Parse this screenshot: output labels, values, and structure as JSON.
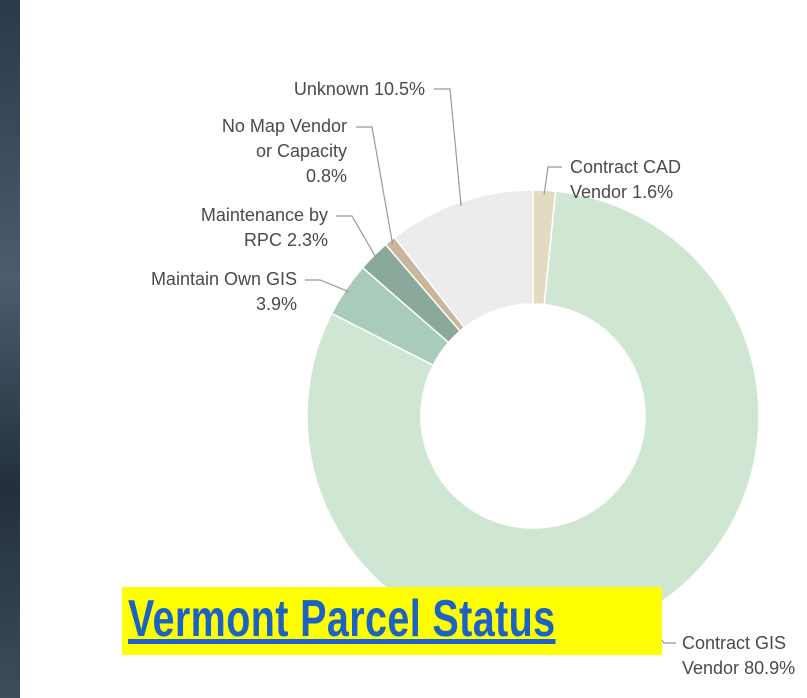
{
  "chart_data": {
    "type": "donut",
    "title": "Vermont Parcel Status",
    "categories": [
      "Contract CAD Vendor",
      "Contract GIS Vendor",
      "Maintain Own GIS",
      "Maintenance by RPC",
      "No Map Vendor or Capacity",
      "Unknown"
    ],
    "values": [
      1.6,
      80.9,
      3.9,
      2.3,
      0.8,
      10.5
    ],
    "value_labels": [
      "1.6%",
      "80.9%",
      "3.9%",
      "2.3%",
      "0.8%",
      "10.5%"
    ],
    "colors": [
      "#e3dac2",
      "#cfe6d3",
      "#a8cbba",
      "#8ba99b",
      "#c8b79c",
      "#ececec"
    ]
  }
}
